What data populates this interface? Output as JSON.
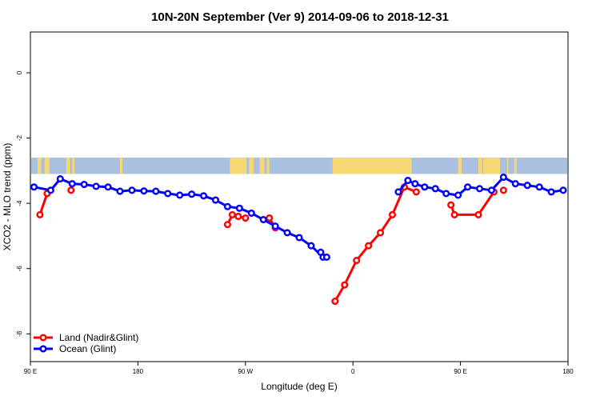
{
  "chart_data": {
    "type": "line",
    "title": "10N-20N September (Ver 9)   2014-09-06 to 2018-12-31",
    "xlabel": "Longitude (deg E)",
    "ylabel": "XCO2 - MLO trend (ppm)",
    "xlim": [
      90,
      540
    ],
    "ylim": [
      -8.85,
      1.25
    ],
    "x_ticks": [
      {
        "value": 90,
        "label": "90 E"
      },
      {
        "value": 180,
        "label": "180"
      },
      {
        "value": 270,
        "label": "90 W"
      },
      {
        "value": 360,
        "label": "0"
      },
      {
        "value": 450,
        "label": "90 E"
      },
      {
        "value": 540,
        "label": "180"
      }
    ],
    "y_ticks": [
      {
        "value": 0,
        "label": "0"
      },
      {
        "value": -2,
        "label": "-2"
      },
      {
        "value": -4,
        "label": "-4"
      },
      {
        "value": -6,
        "label": "-6"
      },
      {
        "value": -8,
        "label": "-8"
      }
    ],
    "colors": {
      "land": "#ff0000",
      "ocean": "#0000ff",
      "map_ocean": "#a9c0e0",
      "map_land": "#f7d774"
    },
    "legend": {
      "position": "bottom-left",
      "entries": [
        {
          "name": "Land (Nadir&Glint)",
          "color": "#ff0000"
        },
        {
          "name": "Ocean (Glint)",
          "color": "#0000ff"
        }
      ]
    },
    "map_strip": {
      "y_range": [
        -3.1,
        -2.6
      ],
      "land_segments_deg": [
        [
          96,
          99
        ],
        [
          102,
          106
        ],
        [
          120,
          123
        ],
        [
          125,
          127
        ],
        [
          165,
          167
        ],
        [
          257,
          271
        ],
        [
          273,
          277
        ],
        [
          282,
          286
        ],
        [
          288,
          290
        ],
        [
          343,
          409
        ],
        [
          448,
          451
        ],
        [
          465,
          468
        ],
        [
          469,
          483
        ],
        [
          489,
          490
        ],
        [
          495,
          497
        ]
      ]
    },
    "series": [
      {
        "name": "Land (Nadir&Glint)",
        "color": "#ff0000",
        "segments": [
          {
            "x": [
              98,
              104
            ],
            "y": [
              -4.35,
              -3.7
            ]
          },
          {
            "x": [
              124
            ],
            "y": [
              -3.6
            ]
          },
          {
            "x": [
              255,
              259,
              264,
              270
            ],
            "y": [
              -4.65,
              -4.35,
              -4.4,
              -4.45
            ]
          },
          {
            "x": [
              290,
              295
            ],
            "y": [
              -4.45,
              -4.75
            ]
          },
          {
            "x": [
              345,
              353,
              363,
              373,
              383,
              393,
              403,
              413
            ],
            "y": [
              -7.0,
              -6.5,
              -5.75,
              -5.3,
              -4.9,
              -4.35,
              -3.5,
              -3.65
            ]
          },
          {
            "x": [
              442,
              445,
              465,
              478
            ],
            "y": [
              -4.05,
              -4.35,
              -4.35,
              -3.65
            ]
          },
          {
            "x": [
              486
            ],
            "y": [
              -3.6
            ]
          }
        ]
      },
      {
        "name": "Ocean (Glint)",
        "color": "#0000ff",
        "segments": [
          {
            "x": [
              93,
              107,
              115,
              125,
              135,
              145,
              155,
              165,
              175,
              185,
              195,
              205,
              215,
              225,
              235,
              245,
              255,
              265,
              275,
              285,
              295,
              305,
              315,
              325,
              335
            ],
            "y": [
              -3.5,
              -3.6,
              -3.25,
              -3.4,
              -3.42,
              -3.48,
              -3.5,
              -3.63,
              -3.6,
              -3.62,
              -3.63,
              -3.7,
              -3.75,
              -3.72,
              -3.77,
              -3.9,
              -4.1,
              -4.15,
              -4.3,
              -4.5,
              -4.7,
              -4.9,
              -5.05,
              -5.3,
              -5.65
            ]
          },
          {
            "x": [
              333,
              338
            ],
            "y": [
              -5.5,
              -5.65
            ]
          },
          {
            "x": [
              398,
              406,
              412,
              420,
              429,
              438,
              448,
              456,
              466,
              476,
              486,
              496,
              506,
              516,
              526,
              536
            ],
            "y": [
              -3.65,
              -3.3,
              -3.4,
              -3.5,
              -3.55,
              -3.7,
              -3.75,
              -3.5,
              -3.55,
              -3.6,
              -3.2,
              -3.4,
              -3.45,
              -3.5,
              -3.65,
              -3.6
            ]
          }
        ]
      }
    ]
  }
}
